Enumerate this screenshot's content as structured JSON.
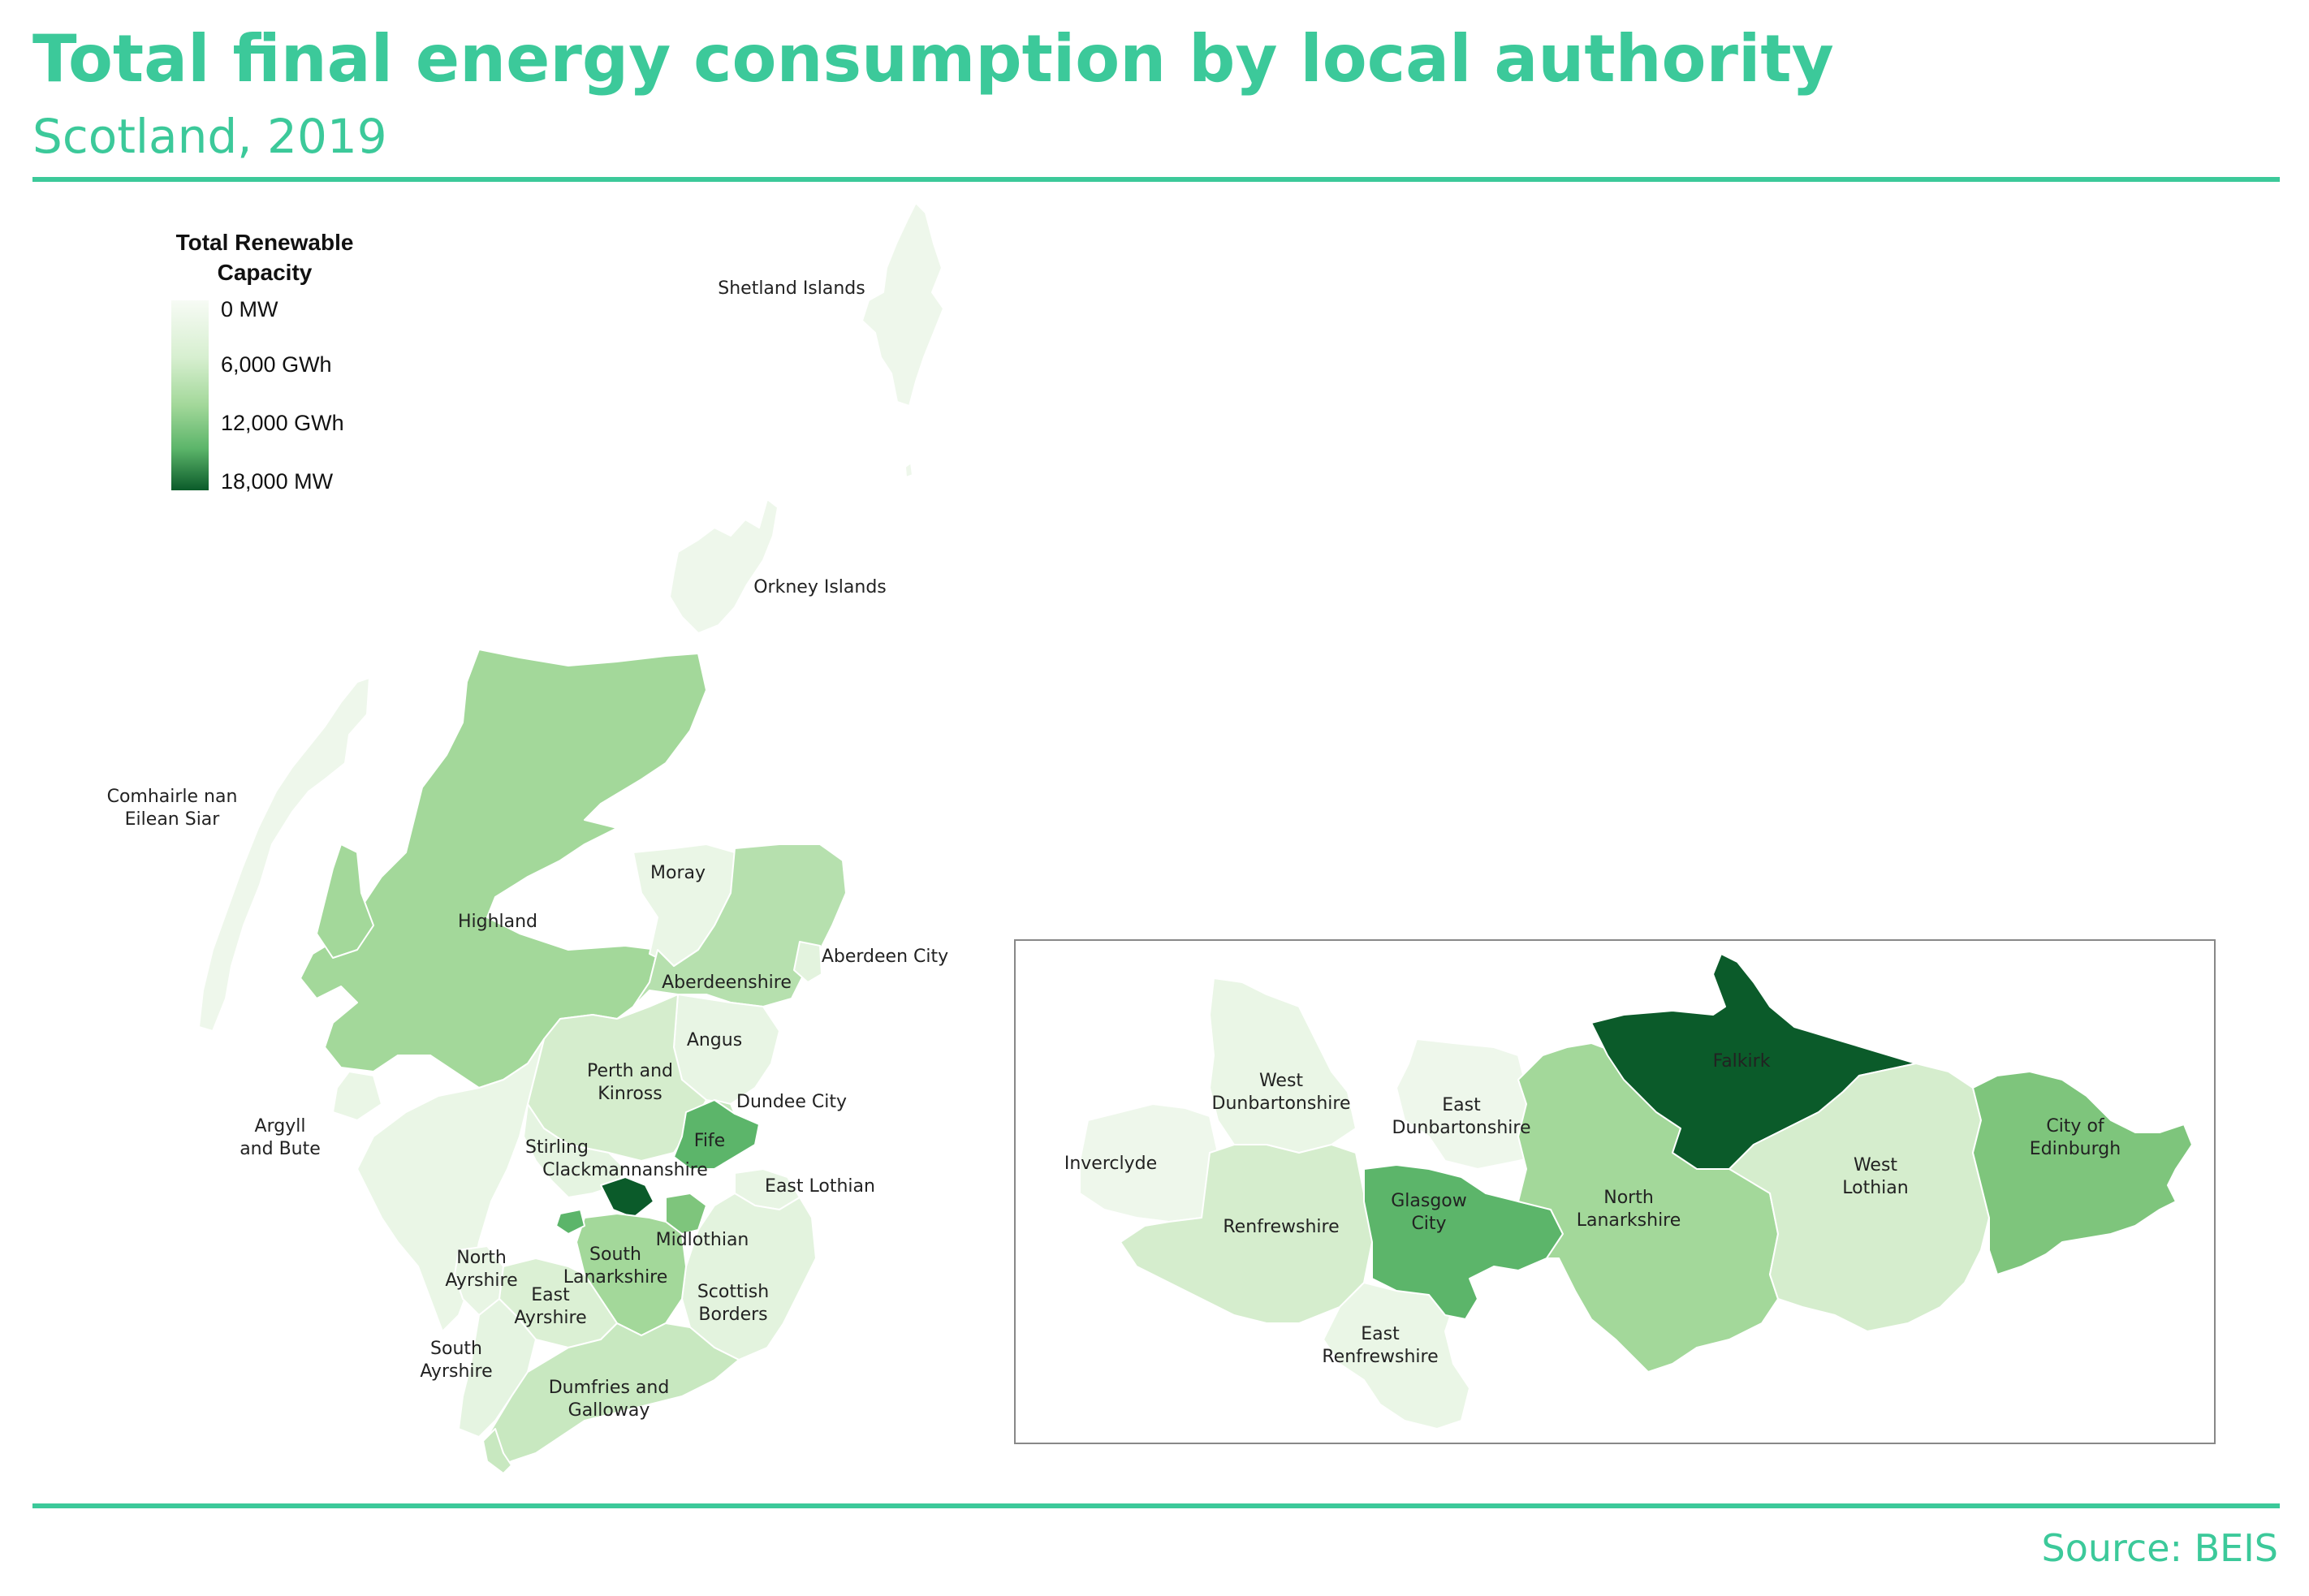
{
  "header": {
    "title": "Total final energy consumption by local authority",
    "subtitle": "Scotland, 2019"
  },
  "legend": {
    "title_line1": "Total Renewable",
    "title_line2": "Capacity",
    "stops": [
      "0 MW",
      "6,000 GWh",
      "12,000 GWh",
      "18,000 MW"
    ]
  },
  "footer": {
    "source": "Source: BEIS"
  },
  "colors": {
    "accent": "#3cc99a",
    "scale_low": "#f7fbf5",
    "scale_high": "#0b5b2a"
  },
  "regions": {
    "shetland": "Shetland Islands",
    "orkney": "Orkney Islands",
    "eilean_siar_1": "Comhairle nan",
    "eilean_siar_2": "Eilean Siar",
    "highland": "Highland",
    "moray": "Moray",
    "aberdeen_city": "Aberdeen City",
    "aberdeenshire": "Aberdeenshire",
    "angus": "Angus",
    "perth_1": "Perth and",
    "perth_2": "Kinross",
    "dundee": "Dundee City",
    "argyll_1": "Argyll",
    "argyll_2": "and Bute",
    "stirling": "Stirling",
    "fife": "Fife",
    "clackmannanshire": "Clackmannanshire",
    "east_lothian": "East Lothian",
    "midlothian": "Midlothian",
    "north_ayrshire_1": "North",
    "north_ayrshire_2": "Ayrshire",
    "south_lanarkshire_1": "South",
    "south_lanarkshire_2": "Lanarkshire",
    "east_ayrshire_1": "East",
    "east_ayrshire_2": "Ayrshire",
    "scottish_borders_1": "Scottish",
    "scottish_borders_2": "Borders",
    "south_ayrshire_1": "South",
    "south_ayrshire_2": "Ayrshire",
    "dumfries_1": "Dumfries and",
    "dumfries_2": "Galloway"
  },
  "inset": {
    "falkirk": "Falkirk",
    "west_dunbartonshire_1": "West",
    "west_dunbartonshire_2": "Dunbartonshire",
    "east_dunbartonshire_1": "East",
    "east_dunbartonshire_2": "Dunbartonshire",
    "inverclyde": "Inverclyde",
    "west_lothian_1": "West",
    "west_lothian_2": "Lothian",
    "edinburgh_1": "City of",
    "edinburgh_2": "Edinburgh",
    "renfrewshire": "Renfrewshire",
    "glasgow_1": "Glasgow",
    "glasgow_2": "City",
    "north_lanarkshire_1": "North",
    "north_lanarkshire_2": "Lanarkshire",
    "east_renfrewshire_1": "East",
    "east_renfrewshire_2": "Renfrewshire"
  }
}
